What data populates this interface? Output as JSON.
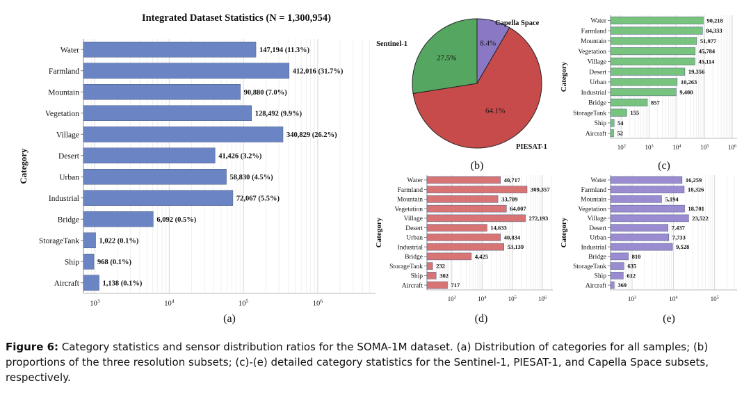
{
  "caption": {
    "label": "Figure 6:",
    "text": "Category statistics and sensor distribution ratios for the SOMA-1M dataset. (a) Distribution of categories for all samples; (b) proportions of the three resolution subsets; (c)-(e) detailed category statistics for the Sentinel-1, PIESAT-1, and Capella Space subsets, respectively."
  },
  "chart_data": [
    {
      "id": "a",
      "panel_label": "(a)",
      "type": "bar",
      "orientation": "horizontal",
      "title": "Integrated Dataset Statistics (N = 1,300,954)",
      "ylabel": "Category",
      "x_scale": "log",
      "xlim": [
        700,
        6000000
      ],
      "x_ticks": [
        {
          "base": "10",
          "exp": "3"
        },
        {
          "base": "10",
          "exp": "4"
        },
        {
          "base": "10",
          "exp": "5"
        },
        {
          "base": "10",
          "exp": "6"
        }
      ],
      "color": "#6b84c4",
      "categories": [
        "Water",
        "Farmland",
        "Mountain",
        "Vegetation",
        "Village",
        "Desert",
        "Urban",
        "Industrial",
        "Bridge",
        "StorageTank",
        "Ship",
        "Aircraft"
      ],
      "values": [
        147194,
        412016,
        90880,
        128492,
        340829,
        41426,
        58830,
        72067,
        6092,
        1022,
        968,
        1138
      ],
      "data_labels": [
        "147,194 (11.3%)",
        "412,016 (31.7%)",
        "90,880 (7.0%)",
        "128,492 (9.9%)",
        "340,829 (26.2%)",
        "41,426 (3.2%)",
        "58,830 (4.5%)",
        "72,067 (5.5%)",
        "6,092 (0.5%)",
        "1,022 (0.1%)",
        "968 (0.1%)",
        "1,138 (0.1%)"
      ]
    },
    {
      "id": "b",
      "panel_label": "(b)",
      "type": "pie",
      "labels": [
        "Capella Space",
        "PIESAT-1",
        "Sentinel-1"
      ],
      "values": [
        8.4,
        64.1,
        27.5
      ],
      "data_labels": [
        "8.4%",
        "64.1%",
        "27.5%"
      ],
      "colors": [
        "#8b78c4",
        "#c84b4b",
        "#55a660"
      ]
    },
    {
      "id": "c",
      "panel_label": "(c)",
      "type": "bar",
      "orientation": "horizontal",
      "ylabel": "Category",
      "x_scale": "log",
      "xlim": [
        40,
        1500000
      ],
      "x_ticks": [
        {
          "base": "10",
          "exp": "2"
        },
        {
          "base": "10",
          "exp": "3"
        },
        {
          "base": "10",
          "exp": "4"
        },
        {
          "base": "10",
          "exp": "5"
        },
        {
          "base": "10",
          "exp": "6"
        }
      ],
      "color": "#78c47e",
      "categories": [
        "Water",
        "Farmland",
        "Mountain",
        "Vegetation",
        "Village",
        "Desert",
        "Urban",
        "Industrial",
        "Bridge",
        "StorageTank",
        "Ship",
        "Aircraft"
      ],
      "values": [
        90218,
        84333,
        51977,
        45784,
        45114,
        19356,
        10263,
        9400,
        857,
        155,
        54,
        52
      ],
      "data_labels": [
        "90,218",
        "84,333",
        "51,977",
        "45,784",
        "45,114",
        "19,356",
        "10,263",
        "9,400",
        "857",
        "155",
        "54",
        "52"
      ]
    },
    {
      "id": "d",
      "panel_label": "(d)",
      "type": "bar",
      "orientation": "horizontal",
      "ylabel": "Category",
      "x_scale": "log",
      "xlim": [
        150,
        2200000
      ],
      "x_ticks": [
        {
          "base": "10",
          "exp": "3"
        },
        {
          "base": "10",
          "exp": "4"
        },
        {
          "base": "10",
          "exp": "5"
        },
        {
          "base": "10",
          "exp": "6"
        }
      ],
      "color": "#d97474",
      "categories": [
        "Water",
        "Farmland",
        "Mountain",
        "Vegetation",
        "Village",
        "Desert",
        "Urban",
        "Industrial",
        "Bridge",
        "StorageTank",
        "Ship",
        "Aircraft"
      ],
      "values": [
        40717,
        309357,
        33709,
        64007,
        272193,
        14633,
        40834,
        53139,
        4425,
        232,
        302,
        717
      ],
      "data_labels": [
        "40,717",
        "309,357",
        "33,709",
        "64,007",
        "272,193",
        "14,633",
        "40,834",
        "53,139",
        "4,425",
        "232",
        "302",
        "717"
      ]
    },
    {
      "id": "e",
      "panel_label": "(e)",
      "type": "bar",
      "orientation": "horizontal",
      "ylabel": "Category",
      "x_scale": "log",
      "xlim": [
        300,
        350000
      ],
      "x_ticks": [
        {
          "base": "10",
          "exp": "3"
        },
        {
          "base": "10",
          "exp": "4"
        },
        {
          "base": "10",
          "exp": "5"
        }
      ],
      "color": "#9b8bd0",
      "categories": [
        "Water",
        "Farmland",
        "Mountain",
        "Vegetation",
        "Village",
        "Desert",
        "Urban",
        "Industrial",
        "Bridge",
        "StorageTank",
        "Ship",
        "Aircraft"
      ],
      "values": [
        16259,
        18326,
        5194,
        18701,
        23522,
        7437,
        7733,
        9528,
        810,
        635,
        612,
        369
      ],
      "data_labels": [
        "16,259",
        "18,326",
        "5,194",
        "18,701",
        "23,522",
        "7,437",
        "7,733",
        "9,528",
        "810",
        "635",
        "612",
        "369"
      ]
    }
  ]
}
